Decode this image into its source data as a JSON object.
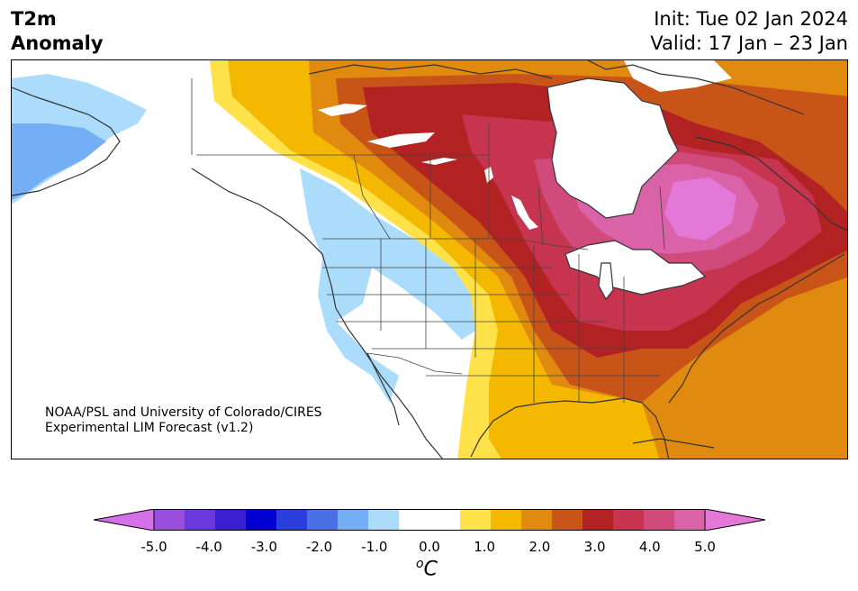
{
  "title": {
    "line1": "T2m",
    "line2": "Anomaly"
  },
  "dates": {
    "init": "Init: Tue 02 Jan 2024",
    "valid": "Valid: 17 Jan – 23 Jan"
  },
  "credit": {
    "line1": "NOAA/PSL and University of Colorado/CIRES",
    "line2": "Experimental LIM Forecast (v1.2)"
  },
  "colorbar": {
    "bins": [
      {
        "low": -5.0,
        "high": -4.5,
        "color": "#d670e8"
      },
      {
        "low": -4.5,
        "high": -4.0,
        "color": "#9a4fdc"
      },
      {
        "low": -4.0,
        "high": -3.5,
        "color": "#6a38dc"
      },
      {
        "low": -3.5,
        "high": -3.0,
        "color": "#3a1ed2"
      },
      {
        "low": -3.0,
        "high": -2.5,
        "color": "#0000d2"
      },
      {
        "low": -2.5,
        "high": -2.0,
        "color": "#2a3ede"
      },
      {
        "low": -2.0,
        "high": -1.5,
        "color": "#4a70e6"
      },
      {
        "low": -1.5,
        "high": -1.0,
        "color": "#74aef4"
      },
      {
        "low": -1.0,
        "high": -0.5,
        "color": "#acdcfc"
      },
      {
        "low": -0.5,
        "high": 0.0,
        "color": "#ffffff"
      },
      {
        "low": 0.0,
        "high": 0.5,
        "color": "#ffffff"
      },
      {
        "low": 0.5,
        "high": 1.0,
        "color": "#ffe24a"
      },
      {
        "low": 1.0,
        "high": 1.5,
        "color": "#f4b800"
      },
      {
        "low": 1.5,
        "high": 2.0,
        "color": "#e08a10"
      },
      {
        "low": 2.0,
        "high": 2.5,
        "color": "#c85418"
      },
      {
        "low": 2.5,
        "high": 3.0,
        "color": "#b22222"
      },
      {
        "low": 3.0,
        "high": 3.5,
        "color": "#c63450"
      },
      {
        "low": 3.5,
        "high": 4.0,
        "color": "#d04a7c"
      },
      {
        "low": 4.0,
        "high": 4.5,
        "color": "#da62a8"
      },
      {
        "low": 4.5,
        "high": 5.0,
        "color": "#e478d8"
      }
    ],
    "ticks": [
      "-5.0",
      "-4.0",
      "-3.0",
      "-2.0",
      "-1.0",
      "0.0",
      "1.0",
      "2.0",
      "3.0",
      "4.0",
      "5.0"
    ],
    "unit_base": "C",
    "unit_super": "o"
  }
}
